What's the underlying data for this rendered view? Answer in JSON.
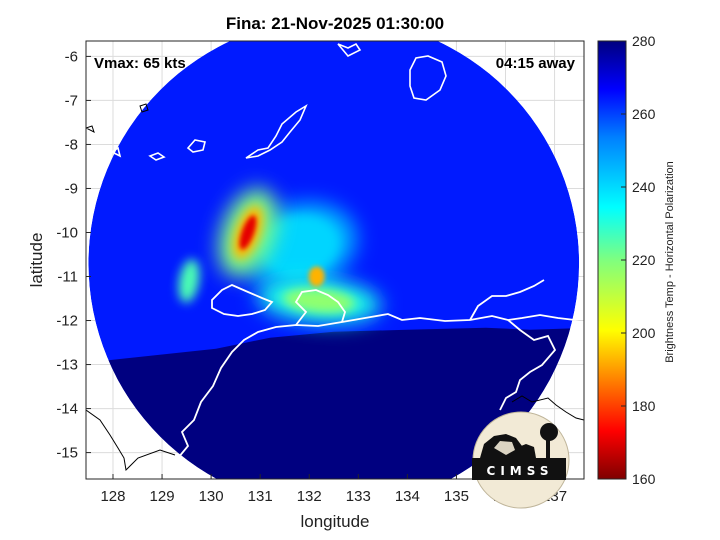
{
  "chart_data": {
    "type": "heatmap",
    "title": "Fina: 21-Nov-2025 01:30:00",
    "xlabel": "longitude",
    "ylabel": "latitude",
    "xlim": [
      127.45,
      137.6
    ],
    "ylim": [
      -15.6,
      -5.65
    ],
    "xticks": [
      128,
      129,
      130,
      131,
      132,
      133,
      134,
      135,
      136,
      137
    ],
    "yticks": [
      -6,
      -7,
      -8,
      -9,
      -10,
      -11,
      -12,
      -13,
      -14,
      -15
    ],
    "grid": true,
    "annotations": {
      "vmax": "Vmax: 65 kts",
      "time_away": "04:15 away"
    },
    "colorbar": {
      "label": "Brightness Temp - Horizontal Polarization",
      "range": [
        160,
        280
      ],
      "ticks": [
        280,
        260,
        240,
        220,
        200,
        180,
        160
      ],
      "colormap": "jet"
    },
    "swath": {
      "center": [
        132.5,
        -10.7
      ],
      "radius_deg": 5.0
    },
    "features": [
      {
        "name": "rainband-core",
        "lon": 130.75,
        "lat": -10.0,
        "value": 172
      },
      {
        "name": "eyewall-south",
        "lon": 132.2,
        "lat": -11.55,
        "value": 218
      },
      {
        "name": "convective-cell",
        "lon": 132.15,
        "lat": -11.0,
        "value": 196
      },
      {
        "name": "outer-band-west",
        "lon": 129.55,
        "lat": -11.1,
        "value": 226
      },
      {
        "name": "inner-band",
        "lon": 131.8,
        "lat": -10.3,
        "value": 240
      },
      {
        "name": "land-mass",
        "lat_south_of": -12.3,
        "value": 280
      }
    ],
    "background_value": 262
  },
  "logo": {
    "text": "CIMSS"
  }
}
